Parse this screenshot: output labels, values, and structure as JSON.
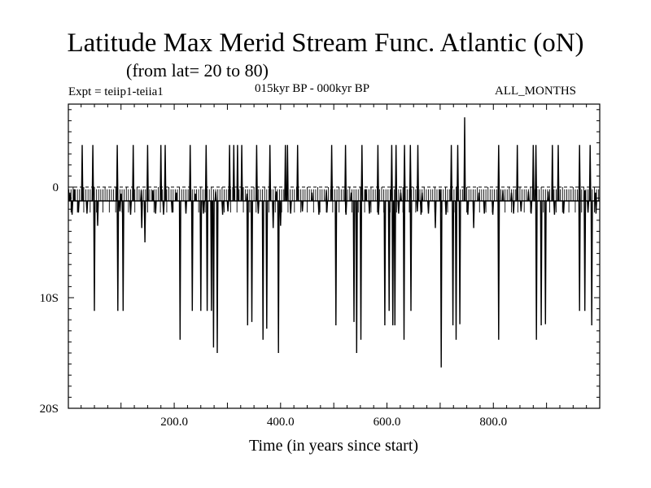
{
  "header": {
    "title": "Latitude Max Merid Stream Func. Atlantic (oN)",
    "subtitle": "(from lat= 20 to 80)",
    "expt": "Expt = teiip1-teiia1",
    "period": "015kyr BP - 000kyr BP",
    "months": "ALL_MONTHS"
  },
  "chart_data": {
    "type": "line",
    "title": "Latitude Max Merid Stream Func. Atlantic (oN)",
    "xlabel": "Time (in years since start)",
    "ylabel": "",
    "xlim": [
      1,
      1000
    ],
    "ylim": [
      -20,
      7.5
    ],
    "x_ticks": [
      200,
      400,
      600,
      800
    ],
    "x_tick_labels": [
      "200.0",
      "400.0",
      "600.0",
      "800.0"
    ],
    "y_ticks": [
      0,
      -10,
      -20
    ],
    "y_tick_labels": [
      "0",
      "10S",
      "20S"
    ],
    "reference_lines": [
      0,
      -1.25
    ],
    "baseline": -1.25,
    "series": [
      {
        "values_description_omitted": true,
        "spikes_up": [
          [
            4,
            -0.5
          ],
          [
            12,
            -0.2
          ],
          [
            27,
            3.8
          ],
          [
            47,
            3.8
          ],
          [
            93,
            3.8
          ],
          [
            100,
            -0.6
          ],
          [
            123,
            3.8
          ],
          [
            138,
            -0.3
          ],
          [
            150,
            3.8
          ],
          [
            160,
            -0.3
          ],
          [
            175,
            3.8
          ],
          [
            183,
            3.8
          ],
          [
            204,
            -0.5
          ],
          [
            230,
            3.8
          ],
          [
            240,
            -0.6
          ],
          [
            260,
            3.8
          ],
          [
            278,
            -0.4
          ],
          [
            304,
            3.8
          ],
          [
            312,
            3.8
          ],
          [
            319,
            3.8
          ],
          [
            327,
            3.8
          ],
          [
            337,
            -0.6
          ],
          [
            355,
            3.8
          ],
          [
            380,
            3.8
          ],
          [
            392,
            -0.4
          ],
          [
            409,
            3.8
          ],
          [
            413,
            3.8
          ],
          [
            432,
            3.8
          ],
          [
            459,
            -0.5
          ],
          [
            486,
            -0.3
          ],
          [
            496,
            3.8
          ],
          [
            522,
            3.8
          ],
          [
            533,
            -0.5
          ],
          [
            553,
            3.8
          ],
          [
            560,
            -0.2
          ],
          [
            583,
            3.8
          ],
          [
            609,
            3.8
          ],
          [
            617,
            3.8
          ],
          [
            626,
            -0.5
          ],
          [
            633,
            3.8
          ],
          [
            644,
            3.8
          ],
          [
            658,
            3.8
          ],
          [
            666,
            -0.5
          ],
          [
            700,
            -0.2
          ],
          [
            721,
            3.8
          ],
          [
            733,
            3.8
          ],
          [
            746,
            6.3
          ],
          [
            773,
            -0.5
          ],
          [
            810,
            3.8
          ],
          [
            818,
            -0.3
          ],
          [
            834,
            -0.5
          ],
          [
            845,
            3.8
          ],
          [
            866,
            -0.4
          ],
          [
            875,
            3.8
          ],
          [
            880,
            3.8
          ],
          [
            903,
            -0.4
          ],
          [
            911,
            3.8
          ],
          [
            922,
            3.8
          ],
          [
            962,
            3.8
          ],
          [
            972,
            -0.3
          ],
          [
            982,
            3.8
          ],
          [
            992,
            -0.5
          ]
        ],
        "spikes_down": [
          [
            8,
            -2.5
          ],
          [
            20,
            -2.3
          ],
          [
            36,
            -2.4
          ],
          [
            50,
            -11.2
          ],
          [
            56,
            -3.5
          ],
          [
            94,
            -11.2
          ],
          [
            98,
            -2.2
          ],
          [
            104,
            -11.2
          ],
          [
            118,
            -2.5
          ],
          [
            139,
            -3.7
          ],
          [
            145,
            -5
          ],
          [
            165,
            -2.4
          ],
          [
            180,
            -2.5
          ],
          [
            196,
            -2.3
          ],
          [
            211,
            -13.8
          ],
          [
            222,
            -2.4
          ],
          [
            234,
            -11.2
          ],
          [
            250,
            -11.2
          ],
          [
            255,
            -2.4
          ],
          [
            262,
            -11.2
          ],
          [
            270,
            -11.2
          ],
          [
            274,
            -14.5
          ],
          [
            281,
            -15
          ],
          [
            291,
            -2.5
          ],
          [
            301,
            -2.2
          ],
          [
            338,
            -12.5
          ],
          [
            346,
            -12.2
          ],
          [
            358,
            -2.4
          ],
          [
            367,
            -13.8
          ],
          [
            374,
            -12.8
          ],
          [
            386,
            -3.7
          ],
          [
            396,
            -15
          ],
          [
            400,
            -3.5
          ],
          [
            419,
            -2.4
          ],
          [
            441,
            -2.2
          ],
          [
            472,
            -2.5
          ],
          [
            487,
            -2.3
          ],
          [
            504,
            -12.5
          ],
          [
            523,
            -2.5
          ],
          [
            538,
            -12.2
          ],
          [
            543,
            -15
          ],
          [
            551,
            -13.8
          ],
          [
            567,
            -2.4
          ],
          [
            584,
            -2.5
          ],
          [
            596,
            -12.5
          ],
          [
            604,
            -11.2
          ],
          [
            611,
            -12.5
          ],
          [
            615,
            -12.5
          ],
          [
            622,
            -2.4
          ],
          [
            632,
            -13.8
          ],
          [
            645,
            -11.2
          ],
          [
            657,
            -2.2
          ],
          [
            664,
            -2.5
          ],
          [
            678,
            -2.4
          ],
          [
            691,
            -3.7
          ],
          [
            702,
            -16.3
          ],
          [
            711,
            -2.5
          ],
          [
            724,
            -12.5
          ],
          [
            730,
            -13.8
          ],
          [
            737,
            -12.4
          ],
          [
            752,
            -2.5
          ],
          [
            763,
            -3.7
          ],
          [
            783,
            -2.4
          ],
          [
            799,
            -2.5
          ],
          [
            810,
            -13.8
          ],
          [
            838,
            -2.4
          ],
          [
            852,
            -2.2
          ],
          [
            871,
            -2.4
          ],
          [
            881,
            -13.8
          ],
          [
            890,
            -12.5
          ],
          [
            898,
            -12.4
          ],
          [
            915,
            -2.5
          ],
          [
            932,
            -2.4
          ],
          [
            962,
            -11.2
          ],
          [
            972,
            -11.2
          ],
          [
            978,
            -2.3
          ],
          [
            985,
            -12.5
          ],
          [
            993,
            -2.4
          ]
        ]
      }
    ]
  }
}
